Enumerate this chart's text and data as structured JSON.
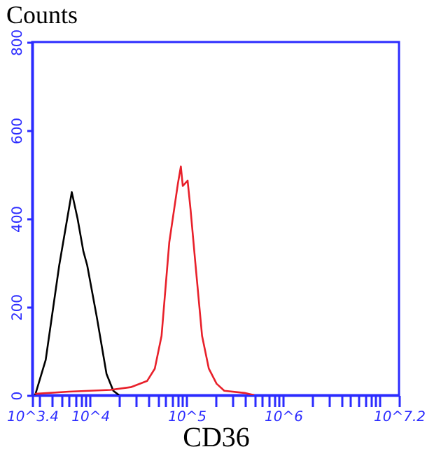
{
  "chart_data": {
    "type": "line",
    "title": "Counts",
    "xlabel": "CD36",
    "log": "x",
    "grid": false,
    "marker": "none",
    "line_style": "solid",
    "xlim": [
      2511.886,
      15848932
    ],
    "xticks": [
      {
        "value": 2511.886,
        "label": "10^3.4"
      },
      {
        "value": 3000,
        "label": null
      },
      {
        "value": 4000,
        "label": null
      },
      {
        "value": 5000,
        "label": null
      },
      {
        "value": 6000,
        "label": null
      },
      {
        "value": 7000,
        "label": null
      },
      {
        "value": 8000,
        "label": null
      },
      {
        "value": 9000,
        "label": null
      },
      {
        "value": 10000,
        "label": "10^4"
      },
      {
        "value": 20000,
        "label": null
      },
      {
        "value": 30000,
        "label": null
      },
      {
        "value": 40000,
        "label": null
      },
      {
        "value": 50000,
        "label": null
      },
      {
        "value": 60000,
        "label": null
      },
      {
        "value": 70000,
        "label": null
      },
      {
        "value": 80000,
        "label": null
      },
      {
        "value": 90000,
        "label": null
      },
      {
        "value": 100000,
        "label": "10^5"
      },
      {
        "value": 200000,
        "label": null
      },
      {
        "value": 300000,
        "label": null
      },
      {
        "value": 400000,
        "label": null
      },
      {
        "value": 500000,
        "label": null
      },
      {
        "value": 600000,
        "label": null
      },
      {
        "value": 700000,
        "label": null
      },
      {
        "value": 800000,
        "label": null
      },
      {
        "value": 900000,
        "label": null
      },
      {
        "value": 1000000,
        "label": "10^6"
      },
      {
        "value": 2000000,
        "label": null
      },
      {
        "value": 3000000,
        "label": null
      },
      {
        "value": 4000000,
        "label": null
      },
      {
        "value": 5000000,
        "label": null
      },
      {
        "value": 6000000,
        "label": null
      },
      {
        "value": 7000000,
        "label": null
      },
      {
        "value": 8000000,
        "label": null
      },
      {
        "value": 9000000,
        "label": null
      },
      {
        "value": 10000000,
        "label": null
      },
      {
        "value": 15848932,
        "label": "10^7.2"
      }
    ],
    "ylim": [
      0,
      800
    ],
    "yticks": [
      0,
      200,
      400,
      600,
      800
    ],
    "series": [
      {
        "color": "#000000",
        "x": [
          2692,
          3467,
          4786,
          6457,
          7413,
          8511,
          9333,
          11749,
          14791,
          17378,
          19953
        ],
        "values": [
          0,
          80,
          294,
          460,
          400,
          326,
          294,
          176,
          48,
          10,
          0
        ]
      },
      {
        "color": "#e8202a",
        "x": [
          2692,
          6026,
          16218,
          26303,
          38905,
          46774,
          54954,
          66069,
          81283,
          87096,
          91201,
          102329,
          109648,
          123027,
          144544,
          169824,
          204174,
          245471,
          398107,
          501187
        ],
        "values": [
          3,
          8,
          12,
          18,
          32,
          60,
          134,
          346,
          480,
          518,
          474,
          486,
          422,
          300,
          134,
          60,
          26,
          10,
          5,
          0
        ]
      }
    ]
  }
}
